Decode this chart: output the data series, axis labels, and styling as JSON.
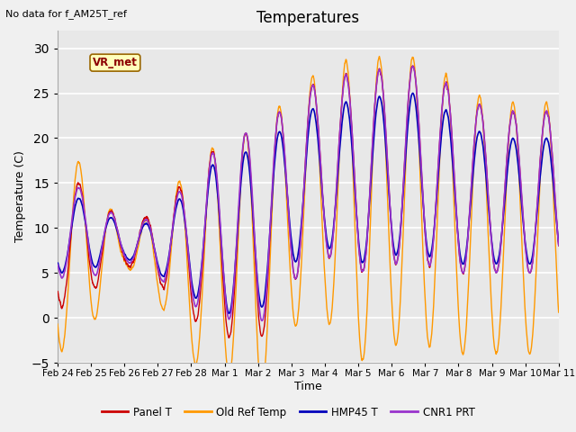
{
  "title": "Temperatures",
  "xlabel": "Time",
  "ylabel": "Temperature (C)",
  "note": "No data for f_AM25T_ref",
  "legend_label": "VR_met",
  "ylim": [
    -5,
    32
  ],
  "xlim": [
    0,
    15
  ],
  "series_labels": [
    "Panel T",
    "Old Ref Temp",
    "HMP45 T",
    "CNR1 PRT"
  ],
  "series_colors": [
    "#cc0000",
    "#ff9900",
    "#0000bb",
    "#9933cc"
  ],
  "series_linewidths": [
    1.0,
    1.0,
    1.2,
    1.2
  ],
  "yticks": [
    -5,
    0,
    5,
    10,
    15,
    20,
    25,
    30
  ],
  "tick_labels": [
    "Feb 24",
    "Feb 25",
    "Feb 26",
    "Feb 27",
    "Feb 28",
    "Mar 1",
    "Mar 2",
    "Mar 3",
    "Mar 4",
    "Mar 5",
    "Mar 6",
    "Mar 7",
    "Mar 8",
    "Mar 9",
    "Mar 10",
    "Mar 11"
  ],
  "tick_positions": [
    0,
    1,
    2,
    3,
    4,
    5,
    6,
    7,
    8,
    9,
    10,
    11,
    12,
    13,
    14,
    15
  ]
}
